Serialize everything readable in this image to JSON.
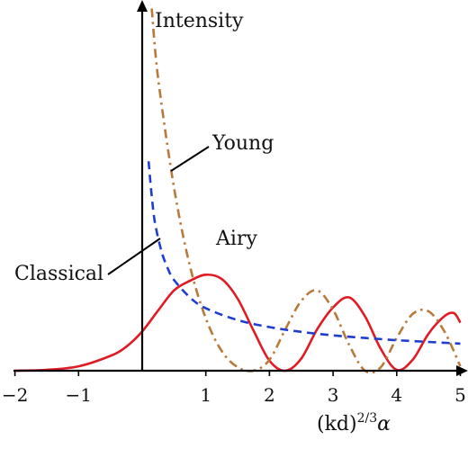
{
  "chart_data": {
    "type": "line",
    "ylabel": "Intensity",
    "xlabel": "(kd)",
    "xlabel_exponent": "2/3",
    "xlabel_suffix": "α",
    "xlim": [
      -2,
      5
    ],
    "x_ticks": [
      {
        "value": -2,
        "label": "−2"
      },
      {
        "value": -1,
        "label": "−1"
      },
      {
        "value": 1,
        "label": "1"
      },
      {
        "value": 2,
        "label": "2"
      },
      {
        "value": 3,
        "label": "3"
      },
      {
        "value": 4,
        "label": "4"
      },
      {
        "value": 5,
        "label": "5"
      }
    ],
    "grid": false,
    "series": [
      {
        "name": "Airy",
        "color": "#e01b24",
        "dash": "solid",
        "x": [
          -2.0,
          -1.5,
          -1.0,
          -0.5,
          -0.25,
          0.0,
          0.25,
          0.5,
          0.75,
          1.0,
          1.25,
          1.5,
          1.75,
          2.0,
          2.25,
          2.5,
          2.75,
          3.0,
          3.25,
          3.5,
          3.75,
          4.0,
          4.25,
          4.5,
          4.75,
          4.9,
          5.0
        ],
        "y": [
          0.0,
          0.2,
          1.0,
          3.4,
          5.5,
          9.0,
          13.8,
          18.4,
          20.6,
          22.0,
          21.0,
          16.5,
          9.2,
          2.3,
          0.0,
          2.8,
          9.5,
          14.5,
          16.8,
          12.5,
          5.0,
          0.2,
          2.5,
          8.5,
          12.5,
          13.2,
          11.0
        ]
      },
      {
        "name": "Young",
        "color": "#b87a3a",
        "dash": "dashdot",
        "x": [
          0.15,
          0.25,
          0.5,
          0.75,
          1.0,
          1.25,
          1.5,
          1.75,
          2.0,
          2.25,
          2.5,
          2.75,
          3.0,
          3.25,
          3.5,
          3.75,
          4.0,
          4.25,
          4.5,
          4.75,
          5.0
        ],
        "y": [
          83.0,
          67.0,
          42.0,
          24.0,
          12.0,
          4.5,
          0.8,
          0.0,
          2.5,
          9.5,
          16.0,
          18.4,
          14.0,
          6.0,
          0.0,
          0.8,
          7.5,
          13.0,
          13.6,
          9.0,
          1.0
        ]
      },
      {
        "name": "Classical",
        "color": "#1f3ed1",
        "dash": "dashed",
        "x": [
          0.1,
          0.15,
          0.2,
          0.3,
          0.4,
          0.5,
          0.75,
          1.0,
          1.5,
          2.0,
          2.5,
          3.0,
          3.5,
          4.0,
          4.5,
          5.0
        ],
        "y": [
          48.0,
          40.0,
          34.0,
          27.5,
          23.5,
          20.8,
          16.8,
          14.3,
          11.6,
          10.0,
          8.9,
          8.1,
          7.5,
          7.0,
          6.6,
          6.2
        ]
      }
    ],
    "annotations": [
      "Young",
      "Airy",
      "Classical"
    ]
  }
}
